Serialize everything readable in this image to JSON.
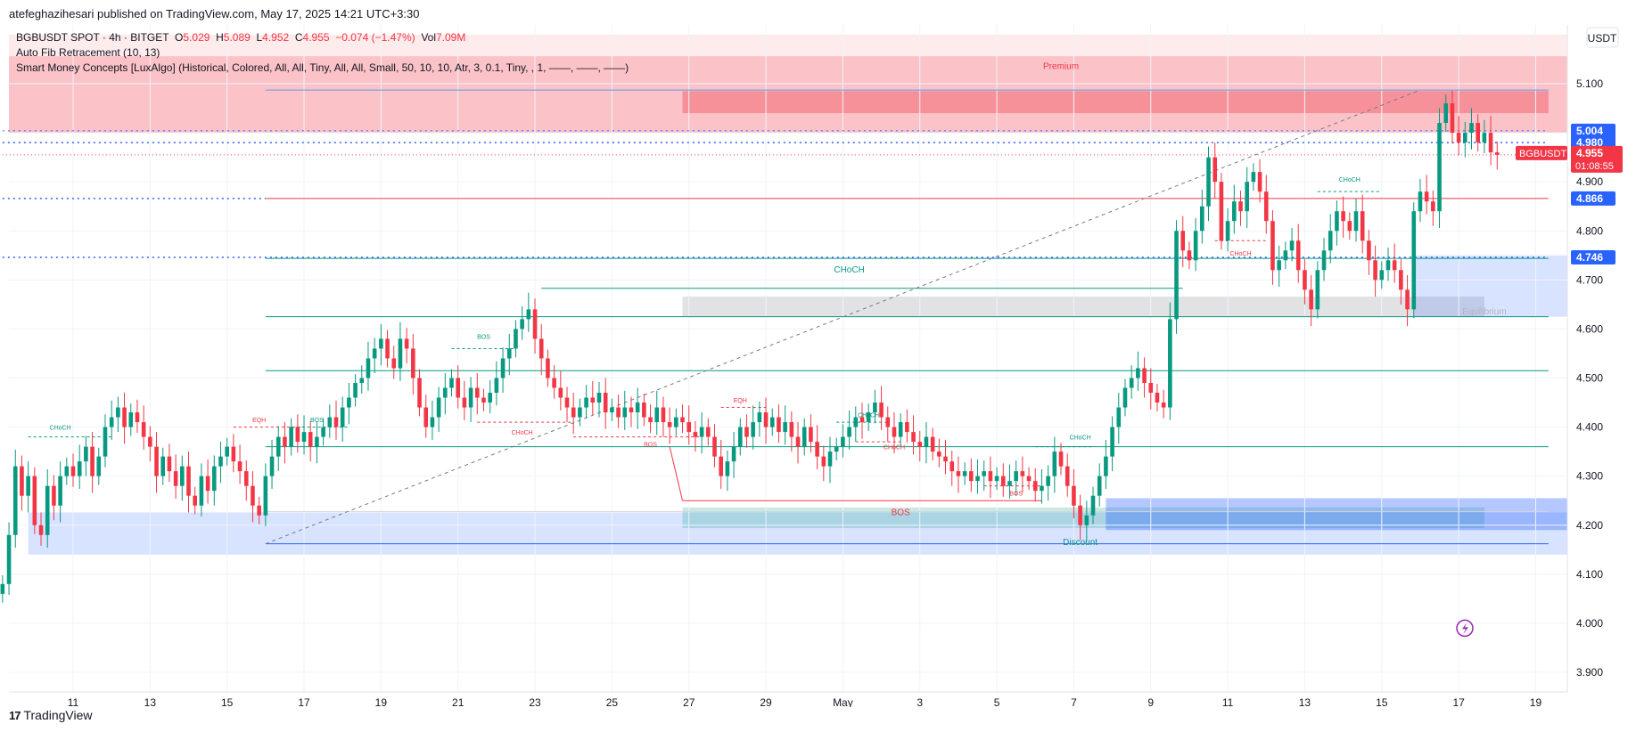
{
  "header": {
    "publisher": "atefeghazihesari published on TradingView.com, May 17, 2025 14:21 UTC+3:30"
  },
  "legend": {
    "symbol": "BGBUSDT SPOT · 4h · BITGET",
    "o_label": "O",
    "o": "5.029",
    "h_label": "H",
    "h": "5.089",
    "l_label": "L",
    "l": "4.952",
    "c_label": "C",
    "c": "4.955",
    "change": "−0.074 (−1.47%)",
    "vol_label": "Vol",
    "vol": "7.09M",
    "indicator1": "Auto Fib Retracement (10, 13)",
    "indicator2": "Smart Money Concepts [LuxAlgo] (Historical, Colored, All, All, Tiny, All, All, Small, 50, 10, 10, Atr, 3, 0.1, Tiny, , 1, ——, ——, ——)"
  },
  "currency": "USDT",
  "footer": {
    "logo": "17",
    "brand": "TradingView"
  },
  "colors": {
    "up": "#089981",
    "down": "#f23645",
    "premium": "#f23645",
    "discount": "#2962ff",
    "fib": "#2962ff"
  },
  "chart_data": {
    "type": "candlestick",
    "symbol": "BGBUSDT",
    "timeframe": "4h",
    "ylim": [
      3.88,
      5.2
    ],
    "y_ticks": [
      3.9,
      4.0,
      4.1,
      4.2,
      4.3,
      4.4,
      4.5,
      4.6,
      4.7,
      4.8,
      4.9,
      5.0,
      5.1
    ],
    "y_tick_labels": [
      "3.900",
      "4.000",
      "4.100",
      "4.200",
      "4.300",
      "4.400",
      "4.500",
      "4.600",
      "4.700",
      "4.800",
      "4.900",
      "5.000",
      "5.100"
    ],
    "x_labels": [
      {
        "i": 11,
        "label": "11"
      },
      {
        "i": 23,
        "label": "13"
      },
      {
        "i": 35,
        "label": "15"
      },
      {
        "i": 47,
        "label": "17"
      },
      {
        "i": 59,
        "label": "19"
      },
      {
        "i": 71,
        "label": "21"
      },
      {
        "i": 83,
        "label": "23"
      },
      {
        "i": 95,
        "label": "25"
      },
      {
        "i": 107,
        "label": "27"
      },
      {
        "i": 119,
        "label": "29"
      },
      {
        "i": 131,
        "label": "May"
      },
      {
        "i": 143,
        "label": "3"
      },
      {
        "i": 155,
        "label": "5"
      },
      {
        "i": 167,
        "label": "7"
      },
      {
        "i": 179,
        "label": "9"
      },
      {
        "i": 191,
        "label": "11"
      },
      {
        "i": 203,
        "label": "13"
      },
      {
        "i": 215,
        "label": "15"
      },
      {
        "i": 227,
        "label": "17"
      },
      {
        "i": 239,
        "label": "19"
      }
    ],
    "closes": [
      4.08,
      4.18,
      4.32,
      4.26,
      4.3,
      4.2,
      4.18,
      4.28,
      4.24,
      4.3,
      4.32,
      4.3,
      4.33,
      4.36,
      4.3,
      4.34,
      4.4,
      4.42,
      4.44,
      4.4,
      4.43,
      4.41,
      4.38,
      4.36,
      4.3,
      4.34,
      4.31,
      4.28,
      4.32,
      4.26,
      4.24,
      4.3,
      4.27,
      4.32,
      4.34,
      4.36,
      4.33,
      4.31,
      4.28,
      4.24,
      4.22,
      4.3,
      4.34,
      4.38,
      4.36,
      4.4,
      4.37,
      4.39,
      4.36,
      4.38,
      4.4,
      4.42,
      4.4,
      4.44,
      4.46,
      4.49,
      4.5,
      4.54,
      4.56,
      4.58,
      4.54,
      4.52,
      4.58,
      4.56,
      4.5,
      4.44,
      4.4,
      4.42,
      4.46,
      4.48,
      4.5,
      4.46,
      4.44,
      4.48,
      4.46,
      4.45,
      4.47,
      4.5,
      4.54,
      4.56,
      4.6,
      4.62,
      4.64,
      4.58,
      4.54,
      4.5,
      4.48,
      4.46,
      4.44,
      4.42,
      4.44,
      4.46,
      4.45,
      4.47,
      4.43,
      4.44,
      4.42,
      4.44,
      4.43,
      4.45,
      4.42,
      4.41,
      4.44,
      4.41,
      4.4,
      4.42,
      4.41,
      4.39,
      4.38,
      4.4,
      4.38,
      4.34,
      4.3,
      4.33,
      4.36,
      4.4,
      4.38,
      4.41,
      4.43,
      4.4,
      4.42,
      4.39,
      4.41,
      4.38,
      4.36,
      4.4,
      4.37,
      4.34,
      4.32,
      4.35,
      4.36,
      4.38,
      4.4,
      4.42,
      4.41,
      4.43,
      4.45,
      4.42,
      4.4,
      4.38,
      4.41,
      4.39,
      4.37,
      4.36,
      4.38,
      4.35,
      4.34,
      4.33,
      4.31,
      4.3,
      4.31,
      4.29,
      4.3,
      4.31,
      4.29,
      4.3,
      4.28,
      4.29,
      4.31,
      4.3,
      4.29,
      4.27,
      4.28,
      4.3,
      4.35,
      4.32,
      4.28,
      4.24,
      4.2,
      4.22,
      4.26,
      4.3,
      4.34,
      4.4,
      4.44,
      4.48,
      4.5,
      4.52,
      4.49,
      4.47,
      4.45,
      4.44,
      4.62,
      4.8,
      4.76,
      4.74,
      4.8,
      4.85,
      4.95,
      4.9,
      4.78,
      4.82,
      4.86,
      4.84,
      4.9,
      4.92,
      4.88,
      4.82,
      4.72,
      4.74,
      4.76,
      4.78,
      4.72,
      4.68,
      4.64,
      4.72,
      4.76,
      4.8,
      4.84,
      4.82,
      4.8,
      4.84,
      4.78,
      4.74,
      4.7,
      4.72,
      4.74,
      4.72,
      4.68,
      4.64,
      4.84,
      4.88,
      4.86,
      4.84,
      5.02,
      5.06,
      5.0,
      4.98,
      5.0,
      5.02,
      4.98,
      5.0,
      4.96,
      4.955
    ]
  },
  "price_labels": [
    {
      "label": "5.004",
      "price": 5.004,
      "bg": "#2962ff"
    },
    {
      "label": "4.980",
      "price": 4.98,
      "bg": "#2962ff"
    },
    {
      "label": "4.866",
      "price": 4.866,
      "bg": "#2962ff"
    },
    {
      "label": "4.746",
      "price": 4.746,
      "bg": "#2962ff"
    }
  ],
  "last_price": {
    "symbol": "BGBUSDT",
    "price": "4.955",
    "timer": "01:08:55"
  },
  "annotations": [
    {
      "text": "Premium",
      "color": "#f23645",
      "i": 165,
      "price": 5.13
    },
    {
      "text": "CHoCH",
      "color": "#089981",
      "i": 132,
      "price": 4.715
    },
    {
      "text": "Equilibrium",
      "color": "#b2b5be",
      "i": 231,
      "price": 4.63
    },
    {
      "text": "BOS",
      "color": "#f23645",
      "i": 140,
      "price": 4.22
    },
    {
      "text": "Discount",
      "color": "#089981",
      "i": 168,
      "price": 4.16
    },
    {
      "text": "CHoCH",
      "color": "#089981",
      "i": 9,
      "price": 4.395
    },
    {
      "text": "EQH",
      "color": "#f23645",
      "i": 40,
      "price": 4.41
    },
    {
      "text": "BOS",
      "color": "#089981",
      "i": 49,
      "price": 4.41
    },
    {
      "text": "BOS",
      "color": "#089981",
      "i": 75,
      "price": 4.58
    },
    {
      "text": "CHoCH",
      "color": "#f23645",
      "i": 81,
      "price": 4.385
    },
    {
      "text": "BOS",
      "color": "#f23645",
      "i": 101,
      "price": 4.36
    },
    {
      "text": "EQH",
      "color": "#f23645",
      "i": 115,
      "price": 4.45
    },
    {
      "text": "CHoCH",
      "color": "#089981",
      "i": 135,
      "price": 4.42
    },
    {
      "text": "CHoCH",
      "color": "#f23645",
      "i": 139,
      "price": 4.355
    },
    {
      "text": "CHoCH",
      "color": "#089981",
      "i": 168,
      "price": 4.375
    },
    {
      "text": "BOS",
      "color": "#f23645",
      "i": 158,
      "price": 4.26
    },
    {
      "text": "CHoCH",
      "color": "#f23645",
      "i": 193,
      "price": 4.75
    },
    {
      "text": "CHoCH",
      "color": "#089981",
      "i": 210,
      "price": 4.9
    }
  ]
}
